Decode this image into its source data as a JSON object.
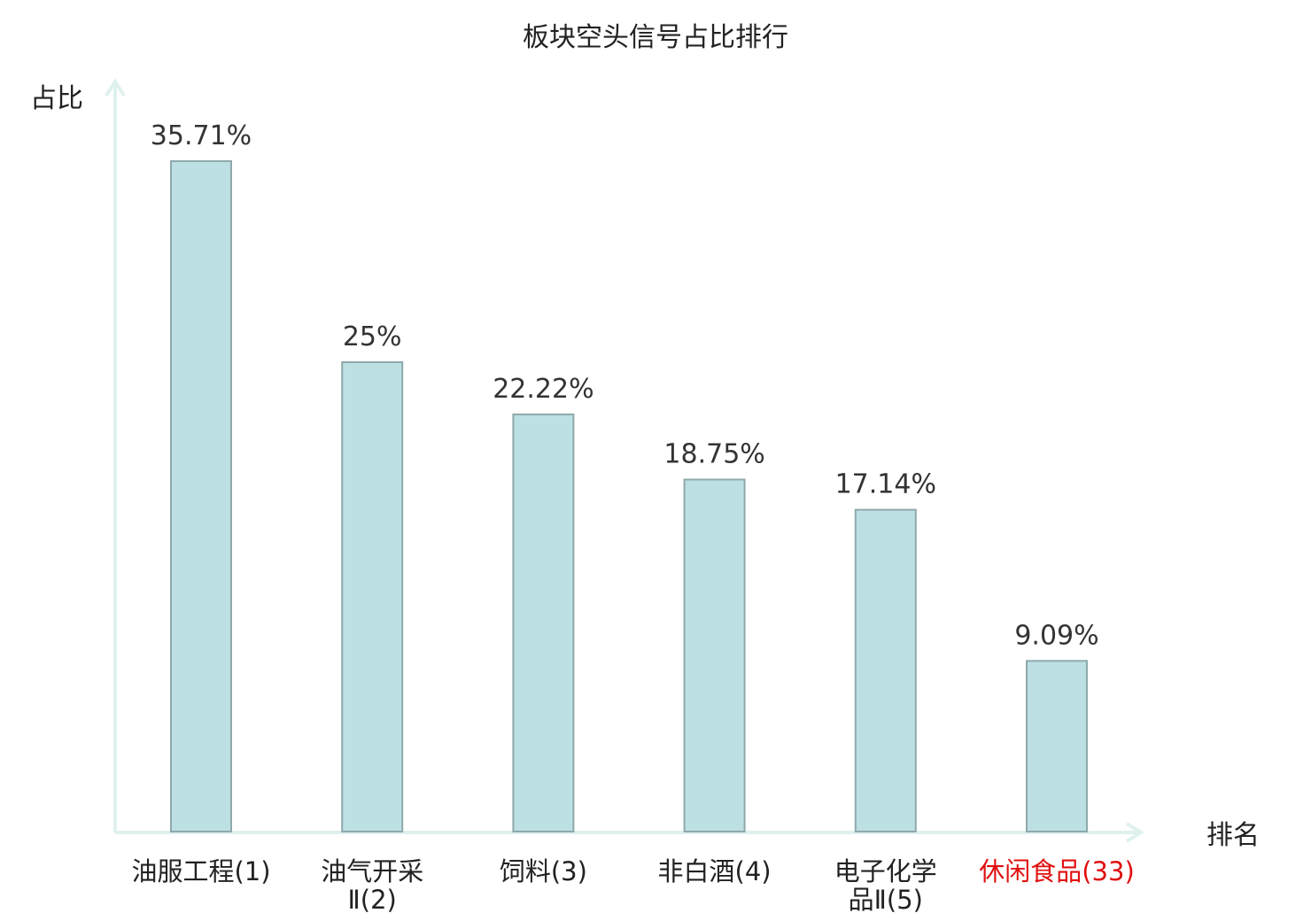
{
  "chart_data": {
    "type": "bar",
    "title": "板块空头信号占比排行",
    "ylabel": "占比",
    "xlabel": "排名",
    "categories": [
      [
        "油服工程(1)"
      ],
      [
        "油气开采",
        "Ⅱ(2)"
      ],
      [
        "饲料(3)"
      ],
      [
        "非白酒(4)"
      ],
      [
        "电子化学",
        "品Ⅱ(5)"
      ],
      [
        "休闲食品(33)"
      ]
    ],
    "values": [
      35.71,
      25,
      22.22,
      18.75,
      17.14,
      9.09
    ],
    "value_labels": [
      "35.71%",
      "25%",
      "22.22%",
      "18.75%",
      "17.14%",
      "9.09%"
    ],
    "highlight_index": 5,
    "ylim": [
      0,
      40
    ],
    "grid": false,
    "colors": {
      "bar_fill": "#bce0e3",
      "bar_edge": "#8fa9ab",
      "axis": "#dff1ee",
      "highlight": "#e01010"
    }
  }
}
